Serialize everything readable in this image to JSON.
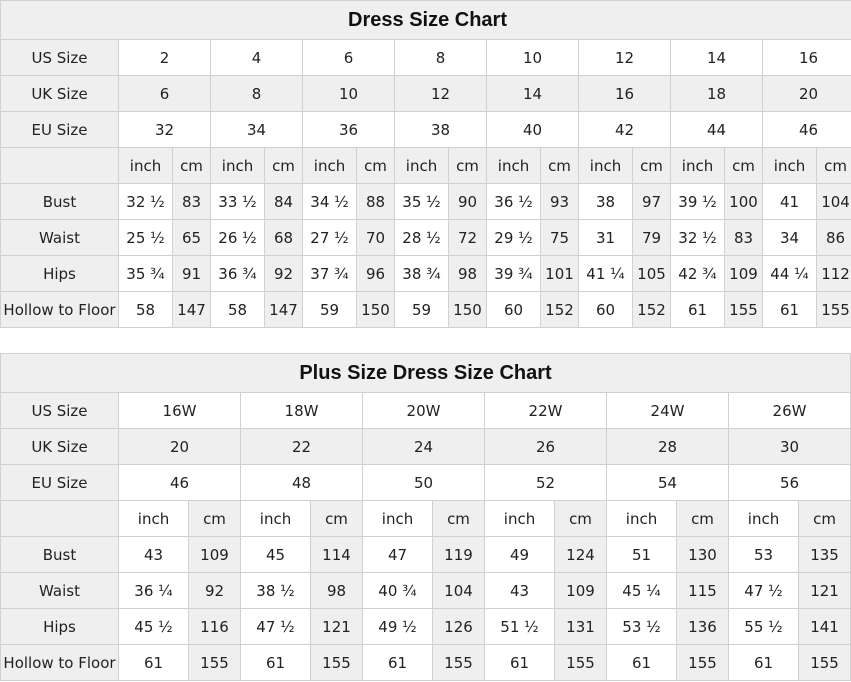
{
  "tables": [
    {
      "title": "Dress Size Chart",
      "row_labels": {
        "us": "US Size",
        "uk": "UK Size",
        "eu": "EU Size"
      },
      "us": [
        "2",
        "4",
        "6",
        "8",
        "10",
        "12",
        "14",
        "16"
      ],
      "uk": [
        "6",
        "8",
        "10",
        "12",
        "14",
        "16",
        "18",
        "20"
      ],
      "eu": [
        "32",
        "34",
        "36",
        "38",
        "40",
        "42",
        "44",
        "46"
      ],
      "units": {
        "inch": "inch",
        "cm": "cm"
      },
      "measurements": [
        {
          "label": "Bust",
          "values": [
            "32 ½",
            "83",
            "33 ½",
            "84",
            "34 ½",
            "88",
            "35 ½",
            "90",
            "36 ½",
            "93",
            "38",
            "97",
            "39 ½",
            "100",
            "41",
            "104"
          ]
        },
        {
          "label": "Waist",
          "values": [
            "25 ½",
            "65",
            "26 ½",
            "68",
            "27 ½",
            "70",
            "28 ½",
            "72",
            "29 ½",
            "75",
            "31",
            "79",
            "32 ½",
            "83",
            "34",
            "86"
          ]
        },
        {
          "label": "Hips",
          "values": [
            "35 ¾",
            "91",
            "36 ¾",
            "92",
            "37 ¾",
            "96",
            "38 ¾",
            "98",
            "39 ¾",
            "101",
            "41 ¼",
            "105",
            "42 ¾",
            "109",
            "44 ¼",
            "112"
          ]
        },
        {
          "label": "Hollow to Floor",
          "values": [
            "58",
            "147",
            "58",
            "147",
            "59",
            "150",
            "59",
            "150",
            "60",
            "152",
            "60",
            "152",
            "61",
            "155",
            "61",
            "155"
          ]
        }
      ]
    },
    {
      "title": "Plus Size Dress Size Chart",
      "row_labels": {
        "us": "US Size",
        "uk": "UK Size",
        "eu": "EU Size"
      },
      "us": [
        "16W",
        "18W",
        "20W",
        "22W",
        "24W",
        "26W"
      ],
      "uk": [
        "20",
        "22",
        "24",
        "26",
        "28",
        "30"
      ],
      "eu": [
        "46",
        "48",
        "50",
        "52",
        "54",
        "56"
      ],
      "units": {
        "inch": "inch",
        "cm": "cm"
      },
      "measurements": [
        {
          "label": "Bust",
          "values": [
            "43",
            "109",
            "45",
            "114",
            "47",
            "119",
            "49",
            "124",
            "51",
            "130",
            "53",
            "135"
          ]
        },
        {
          "label": "Waist",
          "values": [
            "36 ¼",
            "92",
            "38 ½",
            "98",
            "40 ¾",
            "104",
            "43",
            "109",
            "45 ¼",
            "115",
            "47 ½",
            "121"
          ]
        },
        {
          "label": "Hips",
          "values": [
            "45 ½",
            "116",
            "47 ½",
            "121",
            "49 ½",
            "126",
            "51 ½",
            "131",
            "53 ½",
            "136",
            "55 ½",
            "141"
          ]
        },
        {
          "label": "Hollow to Floor",
          "values": [
            "61",
            "155",
            "61",
            "155",
            "61",
            "155",
            "61",
            "155",
            "61",
            "155",
            "61",
            "155"
          ]
        }
      ]
    }
  ],
  "colors": {
    "header_bg": "#efefef",
    "cell_bg": "#ffffff",
    "border": "#d0d0d0"
  }
}
